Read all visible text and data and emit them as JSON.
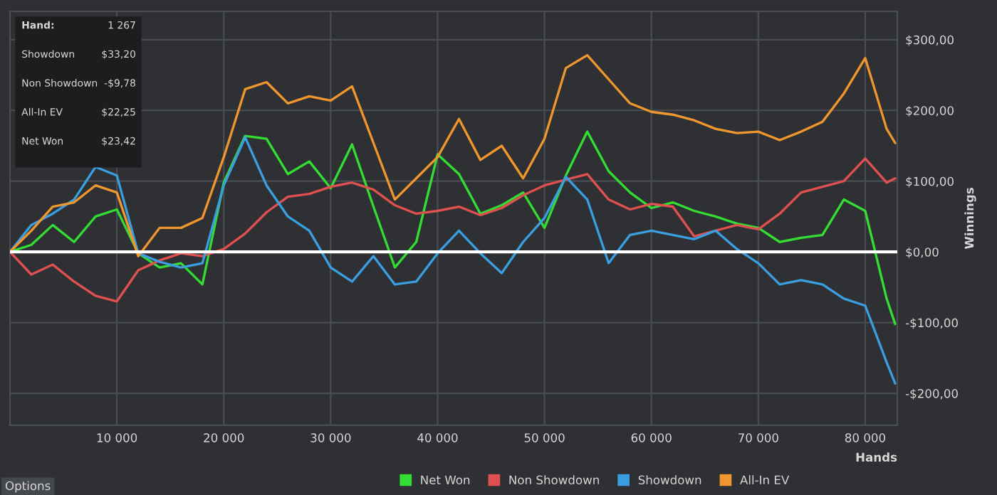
{
  "chart_data": {
    "type": "line",
    "xlabel": "Hands",
    "ylabel": "Winnings",
    "x": [
      0,
      2000,
      4000,
      6000,
      8000,
      10000,
      12000,
      14000,
      16000,
      18000,
      20000,
      22000,
      24000,
      26000,
      28000,
      30000,
      32000,
      34000,
      36000,
      38000,
      40000,
      42000,
      44000,
      46000,
      48000,
      50000,
      52000,
      54000,
      56000,
      58000,
      60000,
      62000,
      64000,
      66000,
      68000,
      70000,
      72000,
      74000,
      76000,
      78000,
      80000,
      82000,
      82800
    ],
    "series": [
      {
        "name": "Net Won",
        "color": "#33dd33",
        "values": [
          0,
          10,
          38,
          14,
          50,
          60,
          -2,
          -22,
          -16,
          -46,
          98,
          164,
          160,
          110,
          128,
          90,
          152,
          64,
          -22,
          14,
          138,
          110,
          54,
          66,
          84,
          34,
          108,
          170,
          114,
          84,
          62,
          70,
          58,
          50,
          40,
          34,
          14,
          20,
          24,
          74,
          58,
          -66,
          -102
        ]
      },
      {
        "name": "Non Showdown",
        "color": "#e05050",
        "values": [
          0,
          -32,
          -18,
          -42,
          -62,
          -70,
          -26,
          -12,
          -2,
          -6,
          4,
          26,
          56,
          78,
          82,
          92,
          98,
          88,
          66,
          54,
          58,
          64,
          52,
          62,
          80,
          94,
          102,
          110,
          74,
          60,
          68,
          64,
          22,
          30,
          38,
          32,
          54,
          84,
          92,
          100,
          132,
          98,
          104
        ]
      },
      {
        "name": "Showdown",
        "color": "#3a9ee0",
        "values": [
          0,
          38,
          54,
          74,
          120,
          108,
          -2,
          -14,
          -22,
          -16,
          94,
          162,
          94,
          50,
          30,
          -22,
          -42,
          -6,
          -46,
          -42,
          -2,
          30,
          -2,
          -30,
          14,
          48,
          106,
          74,
          -16,
          24,
          30,
          24,
          18,
          30,
          4,
          -16,
          -46,
          -40,
          -46,
          -66,
          -76,
          -156,
          -186
        ]
      },
      {
        "name": "All-In EV",
        "color": "#f0962e",
        "values": [
          0,
          30,
          64,
          70,
          94,
          84,
          -6,
          34,
          34,
          48,
          134,
          230,
          240,
          210,
          220,
          214,
          234,
          154,
          74,
          104,
          134,
          188,
          130,
          150,
          104,
          160,
          260,
          278,
          244,
          210,
          198,
          194,
          186,
          174,
          168,
          170,
          158,
          170,
          184,
          224,
          274,
          174,
          154
        ]
      }
    ],
    "xlim": [
      0,
      83000
    ],
    "xticks": [
      {
        "value": 10000,
        "label": "10 000"
      },
      {
        "value": 20000,
        "label": "20 000"
      },
      {
        "value": 30000,
        "label": "30 000"
      },
      {
        "value": 40000,
        "label": "40 000"
      },
      {
        "value": 50000,
        "label": "50 000"
      },
      {
        "value": 60000,
        "label": "60 000"
      },
      {
        "value": 70000,
        "label": "70 000"
      },
      {
        "value": 80000,
        "label": "80 000"
      }
    ],
    "ylim": [
      -245,
      340
    ],
    "yticks": [
      {
        "value": -200,
        "label": "-$200,00"
      },
      {
        "value": -100,
        "label": "-$100,00"
      },
      {
        "value": 0,
        "label": "$0,00"
      },
      {
        "value": 100,
        "label": "$100,00"
      },
      {
        "value": 200,
        "label": "$200,00"
      },
      {
        "value": 300,
        "label": "$300,00"
      }
    ],
    "ref_lines": [
      {
        "axis": "y",
        "value": 0,
        "color": "#ffffff"
      }
    ],
    "grid": true,
    "legend": "bottom right",
    "line_style": "solid",
    "marker": "none",
    "annotations": [
      "Hand:",
      "1 267",
      "Showdown",
      "$33,20",
      "Non Showdown",
      "-$9,78",
      "All-In EV",
      "$22,25",
      "Net Won",
      "$23,42",
      "Options"
    ]
  }
}
